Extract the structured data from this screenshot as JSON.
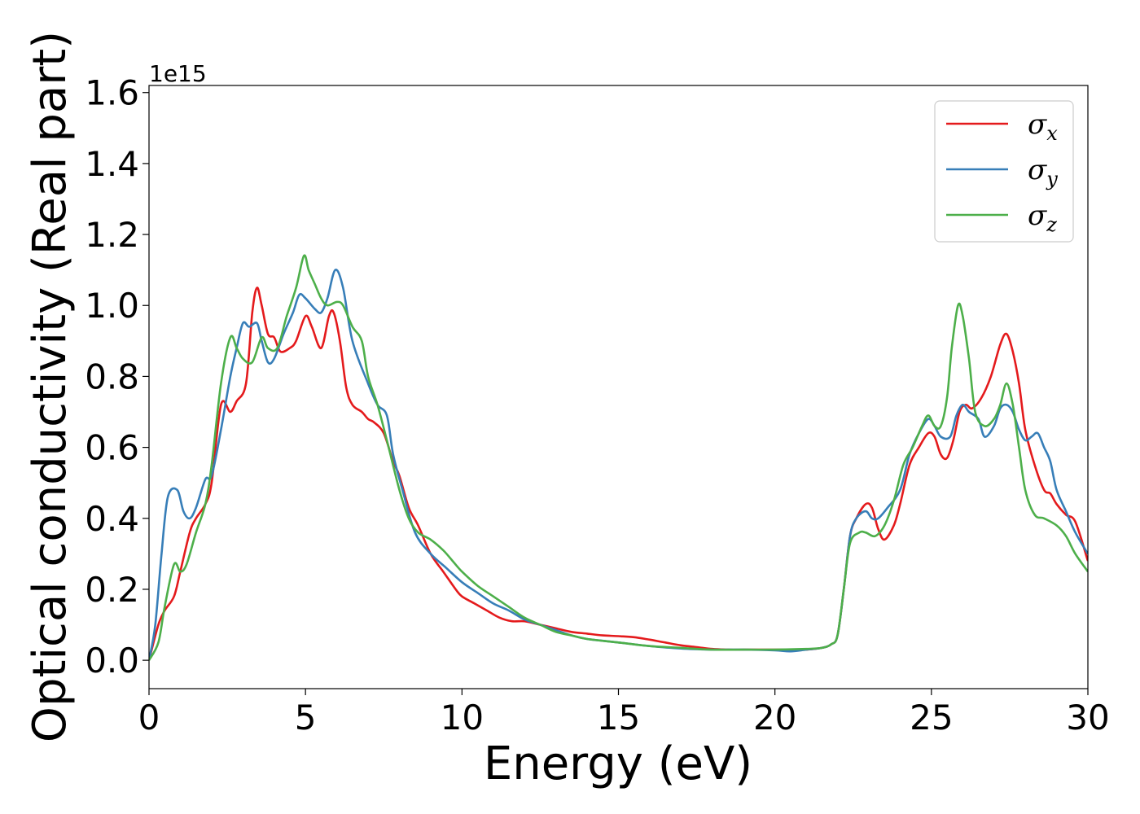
{
  "chart_data": {
    "type": "line",
    "xlabel": "Energy (eV)",
    "ylabel": "Optical conductivity (Real part)",
    "y_offset_label": "1e15",
    "xlim": [
      0,
      30
    ],
    "ylim": [
      -0.08,
      1.62
    ],
    "xticks": [
      0,
      5,
      10,
      15,
      20,
      25,
      30
    ],
    "xtick_labels": [
      "0",
      "5",
      "10",
      "15",
      "20",
      "25",
      "30"
    ],
    "yticks": [
      0.0,
      0.2,
      0.4,
      0.6,
      0.8,
      1.0,
      1.2,
      1.4,
      1.6
    ],
    "ytick_labels": [
      "0.0",
      "0.2",
      "0.4",
      "0.6",
      "0.8",
      "1.0",
      "1.2",
      "1.4",
      "1.6"
    ],
    "grid": false,
    "legend_position": "top-right",
    "series": [
      {
        "name": "σx",
        "sym": "σ",
        "sub": "x",
        "color": "#e41a1c",
        "x": [
          0,
          0.3,
          0.5,
          0.8,
          1.0,
          1.3,
          1.5,
          1.8,
          2.0,
          2.3,
          2.6,
          2.8,
          3.1,
          3.3,
          3.45,
          3.6,
          3.8,
          4.0,
          4.2,
          4.5,
          4.7,
          5.0,
          5.2,
          5.5,
          5.75,
          5.9,
          6.1,
          6.3,
          6.5,
          6.8,
          7.0,
          7.2,
          7.5,
          7.8,
          8.0,
          8.3,
          8.6,
          9.0,
          9.4,
          9.8,
          10.0,
          10.4,
          10.8,
          11.2,
          11.6,
          12.0,
          12.5,
          13.0,
          13.5,
          14.0,
          14.5,
          15.0,
          15.5,
          16.0,
          16.5,
          17.0,
          17.5,
          18.0,
          18.5,
          19.0,
          19.5,
          20.0,
          20.5,
          21.0,
          21.5,
          21.8,
          22.0,
          22.2,
          22.4,
          22.6,
          22.9,
          23.1,
          23.3,
          23.5,
          23.8,
          24.0,
          24.3,
          24.6,
          24.9,
          25.1,
          25.3,
          25.5,
          25.7,
          25.9,
          26.1,
          26.3,
          26.6,
          26.9,
          27.2,
          27.4,
          27.6,
          27.8,
          28.0,
          28.3,
          28.6,
          28.8,
          29.0,
          29.3,
          29.6,
          30.0
        ],
        "y": [
          0,
          0.1,
          0.14,
          0.18,
          0.25,
          0.36,
          0.4,
          0.44,
          0.5,
          0.72,
          0.7,
          0.73,
          0.78,
          0.98,
          1.05,
          1.0,
          0.92,
          0.91,
          0.87,
          0.88,
          0.9,
          0.97,
          0.94,
          0.88,
          0.97,
          0.98,
          0.9,
          0.77,
          0.72,
          0.7,
          0.68,
          0.67,
          0.64,
          0.56,
          0.52,
          0.43,
          0.38,
          0.3,
          0.25,
          0.2,
          0.18,
          0.16,
          0.14,
          0.12,
          0.11,
          0.11,
          0.1,
          0.09,
          0.08,
          0.075,
          0.07,
          0.068,
          0.065,
          0.058,
          0.05,
          0.042,
          0.037,
          0.032,
          0.03,
          0.03,
          0.03,
          0.03,
          0.03,
          0.03,
          0.035,
          0.045,
          0.07,
          0.2,
          0.35,
          0.4,
          0.44,
          0.43,
          0.37,
          0.34,
          0.38,
          0.44,
          0.55,
          0.6,
          0.64,
          0.63,
          0.58,
          0.57,
          0.62,
          0.7,
          0.72,
          0.71,
          0.74,
          0.8,
          0.89,
          0.92,
          0.87,
          0.78,
          0.65,
          0.55,
          0.48,
          0.47,
          0.44,
          0.41,
          0.39,
          0.28
        ]
      },
      {
        "name": "σy",
        "sym": "σ",
        "sub": "y",
        "color": "#377eb8",
        "x": [
          0,
          0.2,
          0.4,
          0.6,
          0.9,
          1.1,
          1.3,
          1.5,
          1.8,
          2.0,
          2.3,
          2.6,
          2.8,
          3.0,
          3.2,
          3.45,
          3.6,
          3.8,
          4.0,
          4.3,
          4.6,
          4.8,
          5.0,
          5.3,
          5.5,
          5.7,
          5.95,
          6.2,
          6.5,
          7.0,
          7.3,
          7.6,
          7.8,
          8.1,
          8.5,
          9.0,
          9.5,
          10.0,
          10.5,
          11.0,
          11.5,
          12.0,
          12.5,
          13.0,
          13.5,
          14.0,
          14.5,
          15.0,
          16.0,
          17.0,
          18.0,
          19.0,
          20.0,
          20.5,
          21.0,
          21.5,
          21.8,
          22.0,
          22.2,
          22.4,
          22.6,
          22.9,
          23.1,
          23.3,
          23.6,
          24.0,
          24.3,
          24.6,
          24.9,
          25.1,
          25.3,
          25.6,
          25.8,
          26.0,
          26.2,
          26.5,
          26.7,
          27.0,
          27.2,
          27.4,
          27.6,
          27.8,
          28.0,
          28.2,
          28.4,
          28.6,
          28.8,
          29.0,
          29.3,
          29.6,
          30.0
        ],
        "y": [
          0,
          0.1,
          0.3,
          0.46,
          0.48,
          0.42,
          0.4,
          0.43,
          0.51,
          0.52,
          0.65,
          0.8,
          0.88,
          0.95,
          0.94,
          0.95,
          0.9,
          0.84,
          0.85,
          0.92,
          0.98,
          1.03,
          1.02,
          0.99,
          0.98,
          1.02,
          1.1,
          1.05,
          0.9,
          0.78,
          0.72,
          0.69,
          0.58,
          0.48,
          0.36,
          0.3,
          0.26,
          0.22,
          0.19,
          0.16,
          0.14,
          0.115,
          0.1,
          0.085,
          0.07,
          0.06,
          0.055,
          0.05,
          0.04,
          0.033,
          0.03,
          0.03,
          0.028,
          0.025,
          0.03,
          0.035,
          0.045,
          0.07,
          0.2,
          0.35,
          0.4,
          0.42,
          0.4,
          0.4,
          0.43,
          0.48,
          0.58,
          0.64,
          0.68,
          0.66,
          0.63,
          0.63,
          0.69,
          0.72,
          0.7,
          0.68,
          0.63,
          0.66,
          0.71,
          0.72,
          0.7,
          0.65,
          0.62,
          0.63,
          0.64,
          0.6,
          0.56,
          0.48,
          0.42,
          0.36,
          0.3
        ]
      },
      {
        "name": "σz",
        "sym": "σ",
        "sub": "z",
        "color": "#4daf4a",
        "x": [
          0,
          0.3,
          0.5,
          0.8,
          1.0,
          1.2,
          1.5,
          1.8,
          2.0,
          2.3,
          2.6,
          2.8,
          3.0,
          3.3,
          3.6,
          3.8,
          4.1,
          4.4,
          4.7,
          4.95,
          5.1,
          5.3,
          5.5,
          5.7,
          6.0,
          6.2,
          6.5,
          6.8,
          7.0,
          7.3,
          7.6,
          8.0,
          8.3,
          8.6,
          9.0,
          9.4,
          9.7,
          10.0,
          10.5,
          11.0,
          11.5,
          12.0,
          12.5,
          13.0,
          13.5,
          14.0,
          15.0,
          16.0,
          17.0,
          18.0,
          19.0,
          20.0,
          21.0,
          21.5,
          21.8,
          22.0,
          22.2,
          22.4,
          22.7,
          22.9,
          23.2,
          23.5,
          23.8,
          24.1,
          24.4,
          24.7,
          24.9,
          25.1,
          25.3,
          25.5,
          25.65,
          25.85,
          26.0,
          26.2,
          26.4,
          26.7,
          27.0,
          27.2,
          27.4,
          27.6,
          27.8,
          28.0,
          28.3,
          28.6,
          29.0,
          29.3,
          29.6,
          30.0
        ],
        "y": [
          0,
          0.05,
          0.15,
          0.27,
          0.25,
          0.27,
          0.36,
          0.44,
          0.55,
          0.78,
          0.91,
          0.88,
          0.85,
          0.84,
          0.91,
          0.88,
          0.88,
          0.97,
          1.05,
          1.14,
          1.1,
          1.06,
          1.02,
          1.0,
          1.01,
          1.0,
          0.94,
          0.9,
          0.8,
          0.72,
          0.62,
          0.48,
          0.4,
          0.36,
          0.34,
          0.31,
          0.28,
          0.25,
          0.21,
          0.18,
          0.15,
          0.12,
          0.1,
          0.08,
          0.07,
          0.06,
          0.05,
          0.04,
          0.035,
          0.03,
          0.03,
          0.03,
          0.032,
          0.035,
          0.045,
          0.07,
          0.2,
          0.33,
          0.36,
          0.36,
          0.35,
          0.38,
          0.45,
          0.55,
          0.6,
          0.66,
          0.69,
          0.66,
          0.66,
          0.74,
          0.88,
          1.0,
          0.97,
          0.85,
          0.7,
          0.66,
          0.68,
          0.72,
          0.78,
          0.72,
          0.6,
          0.48,
          0.41,
          0.4,
          0.38,
          0.35,
          0.3,
          0.25
        ]
      }
    ]
  }
}
